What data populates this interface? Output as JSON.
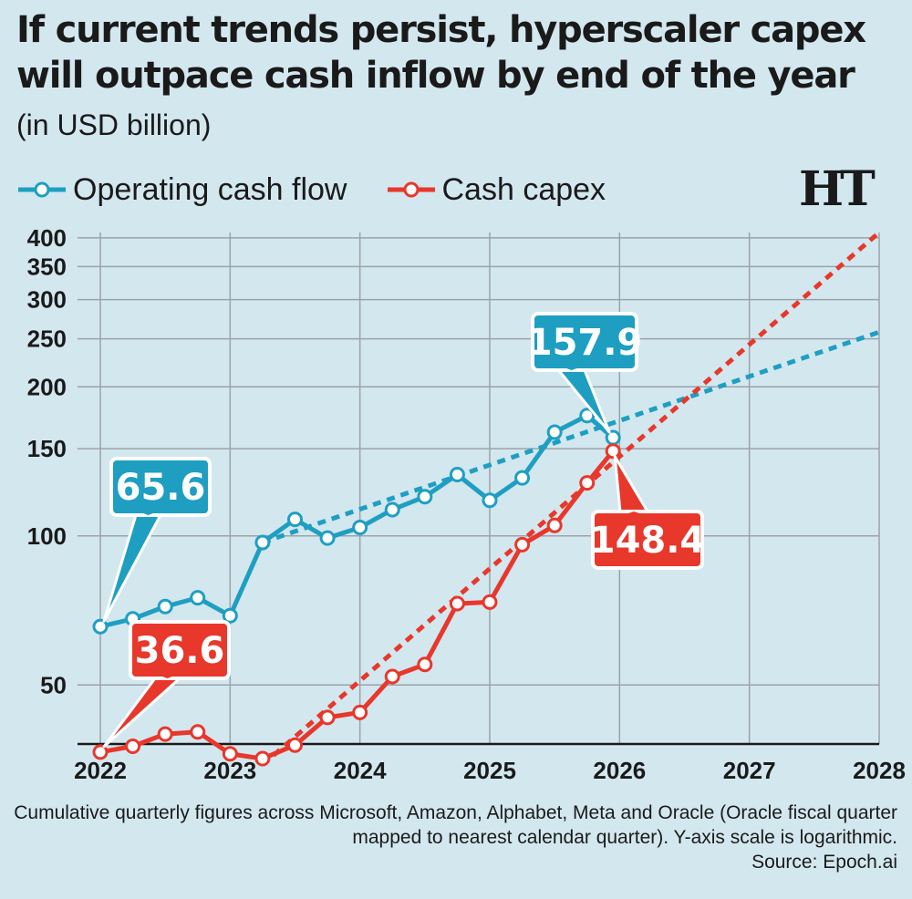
{
  "header": {
    "title": "If current trends persist, hyperscaler capex will outpace cash inflow by end of the year",
    "subtitle": "(in USD billion)",
    "logo": "HT"
  },
  "footer": {
    "note": "Cumulative quarterly figures across Microsoft, Amazon, Alphabet, Meta and Oracle (Oracle fiscal quarter mapped to nearest calendar quarter). Y-axis scale is logarithmic.",
    "source": "Source: Epoch.ai"
  },
  "colors": {
    "background": "#d3e7ef",
    "operating_cash_flow": "#1e9fc2",
    "cash_capex": "#e8372b",
    "grid": "#9aa3a8"
  },
  "chart_data": {
    "type": "line",
    "title": "If current trends persist, hyperscaler capex will outpace cash inflow by end of the year",
    "subtitle": "(in USD billion)",
    "ylabel": "",
    "xlabel": "",
    "y_scale": "log",
    "ylim": [
      38,
      410
    ],
    "xlim": [
      2022,
      2028
    ],
    "x_ticks": [
      "2022",
      "2023",
      "2024",
      "2025",
      "2026",
      "2027",
      "2028"
    ],
    "y_ticks": [
      50,
      100,
      150,
      200,
      250,
      300,
      350,
      400
    ],
    "grid": true,
    "legend": "top-left",
    "series": [
      {
        "name": "Operating cash flow",
        "color": "#1e9fc2",
        "x": [
          2022.0,
          2022.25,
          2022.5,
          2022.75,
          2023.0,
          2023.25,
          2023.5,
          2023.75,
          2024.0,
          2024.25,
          2024.5,
          2024.75,
          2025.0,
          2025.25,
          2025.5,
          2025.75,
          2025.95
        ],
        "y": [
          65.6,
          68,
          72,
          75,
          69,
          97,
          108,
          99,
          104,
          113,
          120,
          133,
          118,
          131,
          162,
          175,
          157.9
        ],
        "trend": {
          "x": [
            2023.25,
            2028.0
          ],
          "y": [
            97,
            258
          ]
        },
        "callout": {
          "text": "65.6",
          "x": 2022.0,
          "y": 65.6
        },
        "end_callout": {
          "text": "157.9",
          "x": 2025.95,
          "y": 157.9
        }
      },
      {
        "name": "Cash capex",
        "color": "#e8372b",
        "x": [
          2022.0,
          2022.25,
          2022.5,
          2022.75,
          2023.0,
          2023.25,
          2023.5,
          2023.75,
          2024.0,
          2024.25,
          2024.5,
          2024.75,
          2025.0,
          2025.25,
          2025.5,
          2025.75,
          2025.95
        ],
        "y": [
          36.6,
          37.6,
          39.8,
          40.2,
          36.3,
          35.5,
          37.8,
          43,
          44,
          52,
          55,
          73,
          73.5,
          96,
          105,
          128,
          148.4
        ],
        "trend": {
          "x": [
            2023.25,
            2028.0
          ],
          "y": [
            34.5,
            410
          ]
        },
        "callout": {
          "text": "36.6",
          "x": 2022.0,
          "y": 36.6
        },
        "end_callout": {
          "text": "148.4",
          "x": 2025.95,
          "y": 148.4
        }
      }
    ]
  }
}
